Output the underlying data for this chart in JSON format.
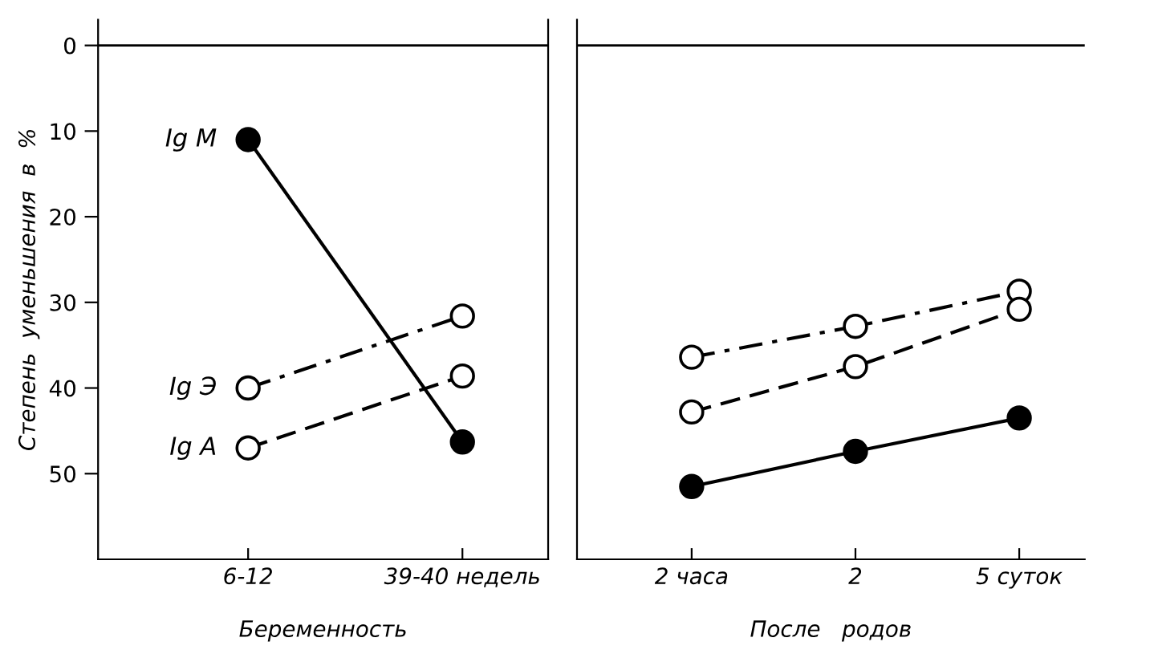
{
  "chart_data": [
    {
      "type": "line",
      "ylabel": "Степень  уменьшения  в  %",
      "xlabel": "Беременность",
      "categories": [
        "6-12",
        "39-40 недель"
      ],
      "ylim": [
        60,
        -3
      ],
      "yticks": [
        0,
        10,
        20,
        30,
        40,
        50
      ],
      "grid": false,
      "marker": "circle",
      "ref_lines": [
        {
          "axis": "y",
          "value": 0,
          "color": "#000000"
        }
      ],
      "series": [
        {
          "name": "Ig M",
          "color": "#000000",
          "line_style": "solid",
          "values": [
            11,
            46.3
          ]
        },
        {
          "name": "Ig Э",
          "color": "#000000",
          "line_style": "dashdot",
          "values": [
            40,
            31.6
          ]
        },
        {
          "name": "Ig A",
          "color": "#000000",
          "line_style": "dashed",
          "values": [
            47,
            38.6
          ]
        }
      ]
    },
    {
      "type": "line",
      "xlabel": "После   родов",
      "categories": [
        "2 часа",
        "2",
        "5 суток"
      ],
      "ylim": [
        60,
        -3
      ],
      "tick_labels": "x",
      "grid": false,
      "marker": "circle",
      "ref_lines": [
        {
          "axis": "y",
          "value": 0,
          "color": "#000000"
        }
      ],
      "series": [
        {
          "color": "#000000",
          "line_style": "solid",
          "values": [
            51.5,
            47.4,
            43.5
          ]
        },
        {
          "color": "#000000",
          "line_style": "dashdot",
          "values": [
            36.4,
            32.8,
            28.7
          ]
        },
        {
          "color": "#000000",
          "line_style": "dashed",
          "values": [
            42.8,
            37.5,
            30.8
          ]
        }
      ]
    }
  ]
}
